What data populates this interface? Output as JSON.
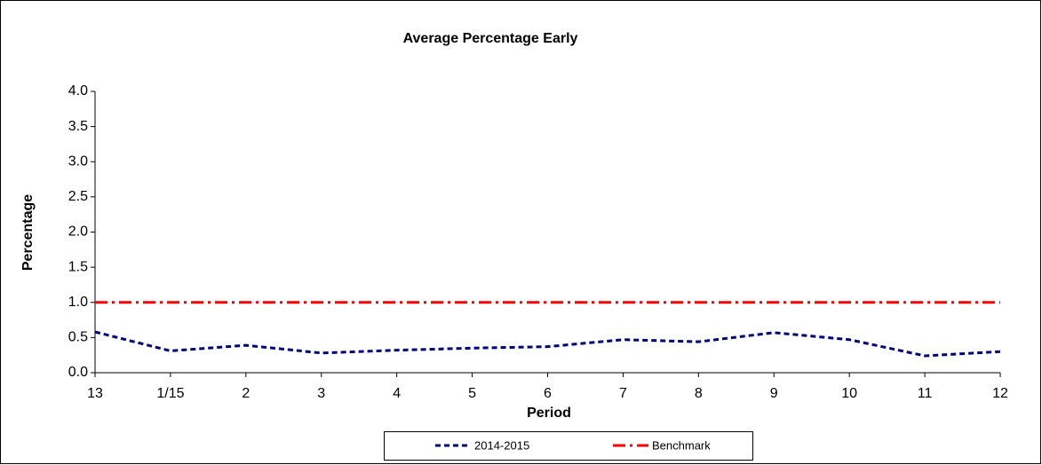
{
  "chart_data": {
    "type": "line",
    "title": "Average Percentage Early",
    "x_label": "Period",
    "y_label": "Percentage",
    "categories": [
      "13",
      "1/15",
      "2",
      "3",
      "4",
      "5",
      "6",
      "7",
      "8",
      "9",
      "10",
      "11",
      "12"
    ],
    "series": [
      {
        "name": "2014-2015",
        "color": "#000080",
        "dash": "6,4",
        "values": [
          0.58,
          0.31,
          0.39,
          0.28,
          0.32,
          0.35,
          0.37,
          0.47,
          0.44,
          0.57,
          0.47,
          0.24,
          0.3
        ]
      },
      {
        "name": "Benchmark",
        "color": "#ff0000",
        "dash": "14,5,3,5",
        "values": [
          1,
          1,
          1,
          1,
          1,
          1,
          1,
          1,
          1,
          1,
          1,
          1,
          1
        ]
      }
    ],
    "ylim": [
      0,
      4
    ],
    "yticks": [
      {
        "value": 0,
        "label": "0.0"
      },
      0.5,
      {
        "value": 1,
        "label": "1.0"
      },
      1.5,
      {
        "value": 2,
        "label": "2.0"
      },
      2.5,
      {
        "value": 3,
        "label": "3.0"
      },
      3.5,
      {
        "value": 4,
        "label": "4.0"
      }
    ],
    "grid": false,
    "legend": "bottom"
  }
}
